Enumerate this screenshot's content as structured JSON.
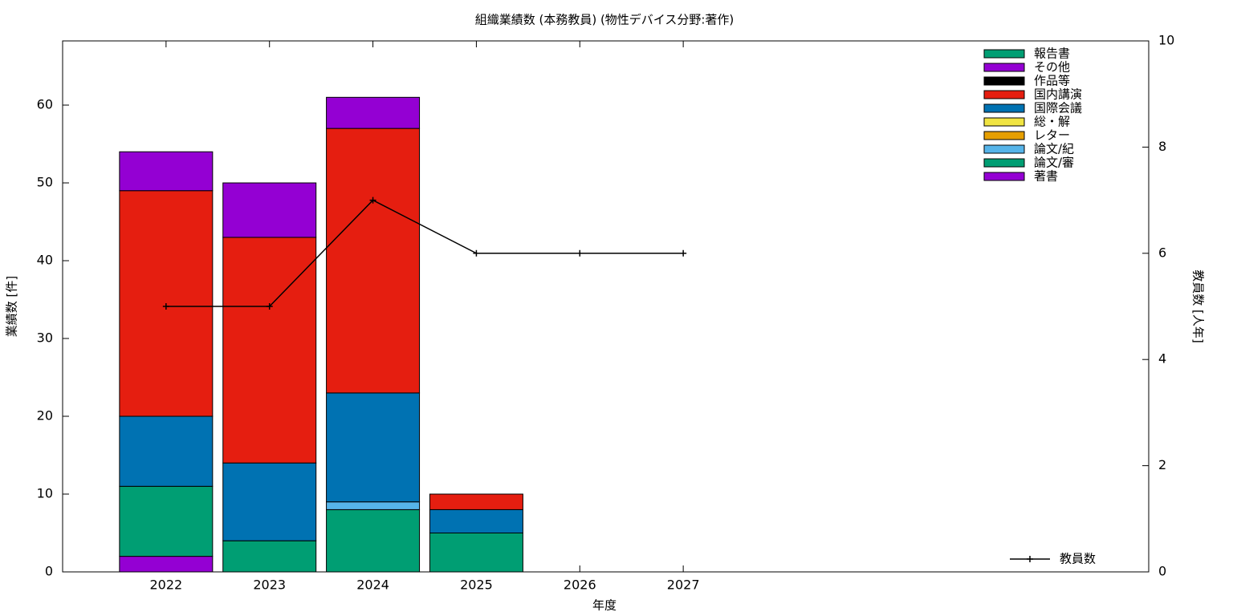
{
  "chart_data": {
    "type": "bar",
    "title": "組織業績数 (本務教員) (物性デバイス分野:著作)",
    "xlabel": "年度",
    "ylabel": "業績数 [件]",
    "y2label": "教員数 [人年]",
    "x": [
      2022,
      2023,
      2024,
      2025,
      2026,
      2027
    ],
    "xlim": [
      2021,
      2031.5
    ],
    "xticks": [
      2022,
      2023,
      2024,
      2025,
      2026,
      2027
    ],
    "ylim": [
      0,
      68.25
    ],
    "yticks": [
      0,
      10,
      20,
      30,
      40,
      50,
      60
    ],
    "y2lim": [
      0,
      10
    ],
    "y2ticks": [
      0,
      2,
      4,
      6,
      8,
      10
    ],
    "legend": "top-right",
    "series": [
      {
        "name": "著書",
        "color": "#9400d3",
        "values": [
          2,
          0,
          0,
          0,
          0,
          0
        ]
      },
      {
        "name": "論文/審",
        "color": "#009e73",
        "values": [
          9,
          4,
          8,
          5,
          0,
          0
        ]
      },
      {
        "name": "論文/紀",
        "color": "#56b4e9",
        "values": [
          0,
          0,
          1,
          0,
          0,
          0
        ]
      },
      {
        "name": "レター",
        "color": "#e69f00",
        "values": [
          0,
          0,
          0,
          0,
          0,
          0
        ]
      },
      {
        "name": "総・解",
        "color": "#f0e442",
        "values": [
          0,
          0,
          0,
          0,
          0,
          0
        ]
      },
      {
        "name": "国際会議",
        "color": "#0072b2",
        "values": [
          9,
          10,
          14,
          3,
          0,
          0
        ]
      },
      {
        "name": "国内講演",
        "color": "#e51e10",
        "values": [
          29,
          29,
          34,
          2,
          0,
          0
        ]
      },
      {
        "name": "作品等",
        "color": "#000000",
        "values": [
          0,
          0,
          0,
          0,
          0,
          0
        ]
      },
      {
        "name": "その他",
        "color": "#9400d3",
        "values": [
          5,
          7,
          4,
          0,
          0,
          0
        ]
      },
      {
        "name": "報告書",
        "color": "#009e73",
        "values": [
          0,
          0,
          0,
          0,
          0,
          0
        ]
      },
      {
        "name": "教員数",
        "type": "line",
        "axis": "y2",
        "color": "#000000",
        "values": [
          5,
          5,
          7,
          6,
          6,
          6
        ]
      }
    ]
  }
}
